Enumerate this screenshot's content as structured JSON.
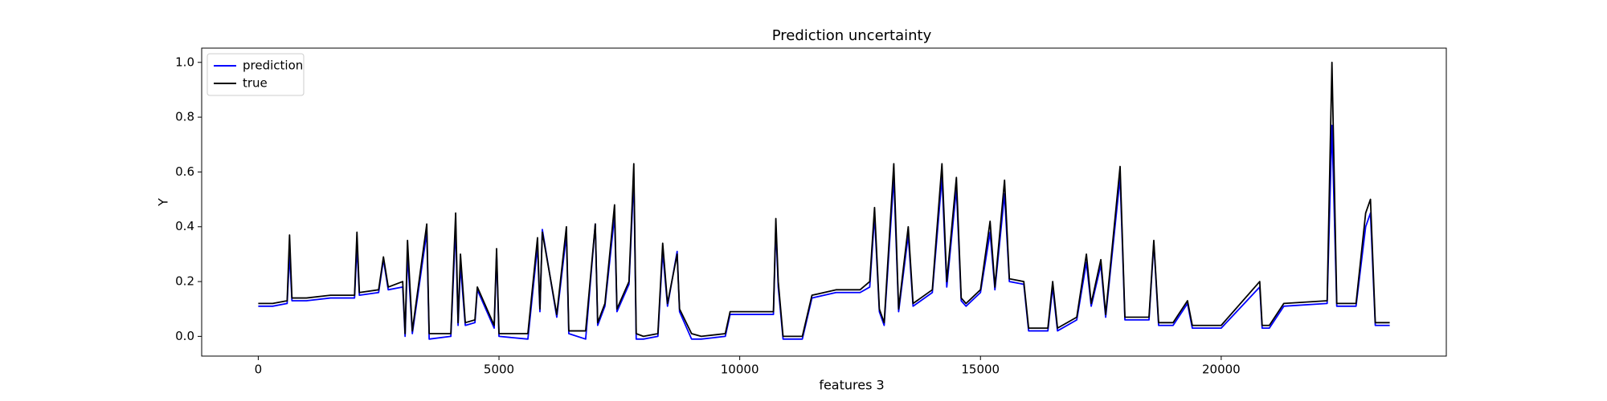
{
  "chart_data": {
    "type": "line",
    "title": "Prediction uncertainty",
    "x_label": "features 3",
    "y_label": "Y",
    "x": [
      0,
      300,
      600,
      650,
      700,
      1000,
      1500,
      2000,
      2050,
      2100,
      2500,
      2600,
      2700,
      3000,
      3050,
      3100,
      3200,
      3500,
      3550,
      4000,
      4100,
      4150,
      4200,
      4300,
      4500,
      4550,
      4900,
      4950,
      5000,
      5600,
      5800,
      5850,
      5900,
      6200,
      6400,
      6450,
      6800,
      7000,
      7050,
      7200,
      7400,
      7450,
      7700,
      7800,
      7850,
      8000,
      8300,
      8400,
      8500,
      8700,
      8750,
      9000,
      9200,
      9700,
      9800,
      10500,
      10700,
      10750,
      10800,
      10900,
      11300,
      11500,
      12000,
      12500,
      12700,
      12800,
      12900,
      13000,
      13200,
      13300,
      13500,
      13600,
      14000,
      14200,
      14300,
      14500,
      14600,
      14700,
      15000,
      15200,
      15300,
      15500,
      15600,
      15900,
      16000,
      16400,
      16500,
      16600,
      17000,
      17200,
      17300,
      17500,
      17600,
      17900,
      18000,
      18500,
      18600,
      18700,
      19000,
      19300,
      19400,
      20000,
      20800,
      20850,
      21000,
      21300,
      22200,
      22300,
      22400,
      22800,
      23000,
      23100,
      23200,
      23500
    ],
    "series": [
      {
        "name": "prediction",
        "color": "#0000ff",
        "values": [
          0.11,
          0.11,
          0.12,
          0.3,
          0.13,
          0.13,
          0.14,
          0.14,
          0.33,
          0.15,
          0.16,
          0.28,
          0.17,
          0.18,
          0.0,
          0.3,
          0.01,
          0.38,
          -0.01,
          0.0,
          0.4,
          0.04,
          0.26,
          0.04,
          0.05,
          0.17,
          0.03,
          0.3,
          0.0,
          -0.01,
          0.33,
          0.09,
          0.39,
          0.07,
          0.37,
          0.01,
          -0.01,
          0.41,
          0.04,
          0.11,
          0.44,
          0.09,
          0.19,
          0.58,
          -0.01,
          -0.01,
          0.0,
          0.31,
          0.11,
          0.31,
          0.09,
          -0.01,
          -0.01,
          0.0,
          0.08,
          0.08,
          0.08,
          0.4,
          0.18,
          -0.01,
          -0.01,
          0.14,
          0.16,
          0.16,
          0.18,
          0.44,
          0.09,
          0.04,
          0.58,
          0.09,
          0.37,
          0.11,
          0.16,
          0.58,
          0.18,
          0.54,
          0.13,
          0.11,
          0.16,
          0.38,
          0.17,
          0.52,
          0.2,
          0.19,
          0.02,
          0.02,
          0.18,
          0.02,
          0.06,
          0.27,
          0.11,
          0.26,
          0.07,
          0.58,
          0.06,
          0.06,
          0.34,
          0.04,
          0.04,
          0.12,
          0.03,
          0.03,
          0.18,
          0.03,
          0.03,
          0.11,
          0.12,
          0.77,
          0.11,
          0.11,
          0.4,
          0.45,
          0.04,
          0.04
        ]
      },
      {
        "name": "true",
        "color": "#000000",
        "values": [
          0.12,
          0.12,
          0.13,
          0.37,
          0.14,
          0.14,
          0.15,
          0.15,
          0.38,
          0.16,
          0.17,
          0.29,
          0.18,
          0.2,
          0.01,
          0.35,
          0.02,
          0.41,
          0.01,
          0.01,
          0.45,
          0.05,
          0.3,
          0.05,
          0.06,
          0.18,
          0.04,
          0.32,
          0.01,
          0.01,
          0.36,
          0.1,
          0.38,
          0.08,
          0.4,
          0.02,
          0.02,
          0.41,
          0.05,
          0.12,
          0.48,
          0.1,
          0.2,
          0.63,
          0.01,
          0.0,
          0.01,
          0.34,
          0.12,
          0.3,
          0.1,
          0.01,
          0.0,
          0.01,
          0.09,
          0.09,
          0.09,
          0.43,
          0.2,
          0.0,
          0.0,
          0.15,
          0.17,
          0.17,
          0.2,
          0.47,
          0.1,
          0.05,
          0.63,
          0.1,
          0.4,
          0.12,
          0.17,
          0.63,
          0.2,
          0.58,
          0.14,
          0.12,
          0.17,
          0.42,
          0.18,
          0.57,
          0.21,
          0.2,
          0.03,
          0.03,
          0.2,
          0.03,
          0.07,
          0.3,
          0.12,
          0.28,
          0.08,
          0.62,
          0.07,
          0.07,
          0.35,
          0.05,
          0.05,
          0.13,
          0.04,
          0.04,
          0.2,
          0.04,
          0.04,
          0.12,
          0.13,
          1.0,
          0.12,
          0.12,
          0.45,
          0.5,
          0.05,
          0.05
        ]
      }
    ],
    "xlim": [
      -1175,
      24675
    ],
    "ylim": [
      -0.072,
      1.052
    ],
    "xticks": [
      0,
      5000,
      10000,
      15000,
      20000
    ],
    "yticks": [
      {
        "value": 0,
        "label": "0.0"
      },
      {
        "value": 0.2,
        "label": "0.2"
      },
      {
        "value": 0.4,
        "label": "0.4"
      },
      {
        "value": 0.6,
        "label": "0.6"
      },
      {
        "value": 0.8,
        "label": "0.8"
      },
      {
        "value": 1.0,
        "label": "1.0"
      }
    ],
    "legend": "upper left"
  }
}
